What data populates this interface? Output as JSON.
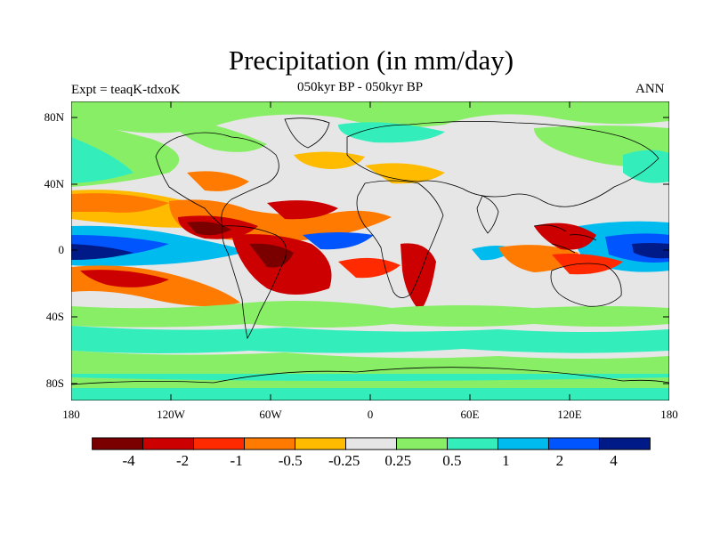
{
  "title": "Precipitation (in mm/day)",
  "subtitle_center": "050kyr BP - 050kyr BP",
  "subtitle_left": "Expt = teaqK-tdxoK",
  "subtitle_right": "ANN",
  "lat_labels": [
    "80N",
    "40N",
    "0",
    "40S",
    "80S"
  ],
  "lon_labels": [
    "180",
    "120W",
    "60W",
    "0",
    "60E",
    "120E",
    "180"
  ],
  "colorbar": {
    "colors": [
      "#7a0000",
      "#cc0000",
      "#ff2a00",
      "#ff7a00",
      "#ffbb00",
      "#e6e6e6",
      "#88ee66",
      "#33eebb",
      "#00bbee",
      "#0055ff",
      "#001a88"
    ],
    "labels": [
      "-4",
      "-2",
      "-1",
      "-0.5",
      "-0.25",
      "0.25",
      "0.5",
      "1",
      "2",
      "4"
    ]
  }
}
